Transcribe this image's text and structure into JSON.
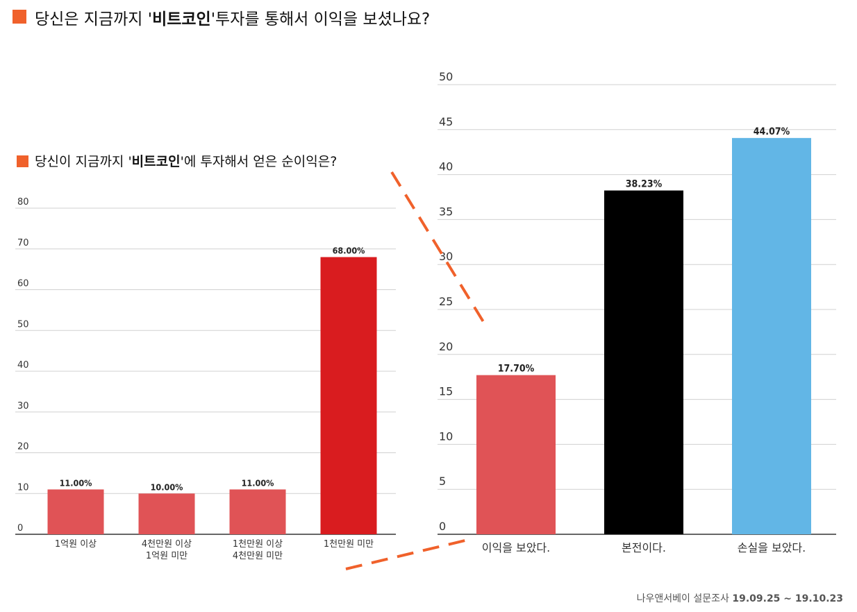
{
  "title_main": {
    "before": "당신은 지금까지 '",
    "bold": "비트코인",
    "after": "'투자를 통해서 이익을 보셨나요?"
  },
  "title_sub": {
    "before": "당신이 지금까지 '",
    "bold": "비트코인",
    "after": "'에 투자해서 얻은 순이익은?"
  },
  "footer": {
    "source": "나우앤서베이 설문조사 ",
    "dates": "19.09.25 ~ 19.10.23"
  },
  "colors": {
    "accent": "#f0612b",
    "bar_red_light": "#e05356",
    "bar_red": "#d91c1f",
    "bar_black": "#000000",
    "bar_blue": "#62b6e6"
  },
  "chart_data": [
    {
      "type": "bar",
      "title": "당신이 지금까지 '비트코인'에 투자해서 얻은 순이익은?",
      "categories": [
        [
          "1억원 이상"
        ],
        [
          "4천만원 이상",
          "1억원 미만"
        ],
        [
          "1천만원 이상",
          "4천만원 미만"
        ],
        [
          "1천만원 미만"
        ]
      ],
      "values": [
        11.0,
        10.0,
        11.0,
        68.0
      ],
      "data_labels": [
        "11.00%",
        "10.00%",
        "11.00%",
        "68.00%"
      ],
      "bar_colors": [
        "#e05356",
        "#e05356",
        "#e05356",
        "#d91c1f"
      ],
      "ylim": [
        0,
        80
      ],
      "yticks": [
        0,
        10,
        20,
        30,
        40,
        50,
        60,
        70,
        80
      ],
      "grid": true
    },
    {
      "type": "bar",
      "title": "당신은 지금까지 '비트코인'투자를 통해서 이익을 보셨나요?",
      "categories": [
        [
          "이익을 보았다."
        ],
        [
          "본전이다."
        ],
        [
          "손실을 보았다."
        ]
      ],
      "values": [
        17.7,
        38.23,
        44.07
      ],
      "data_labels": [
        "17.70%",
        "38.23%",
        "44.07%"
      ],
      "bar_colors": [
        "#e05356",
        "#000000",
        "#62b6e6"
      ],
      "ylim": [
        0,
        50
      ],
      "yticks": [
        0,
        5,
        10,
        15,
        20,
        25,
        30,
        35,
        40,
        45,
        50
      ],
      "grid": true
    }
  ]
}
